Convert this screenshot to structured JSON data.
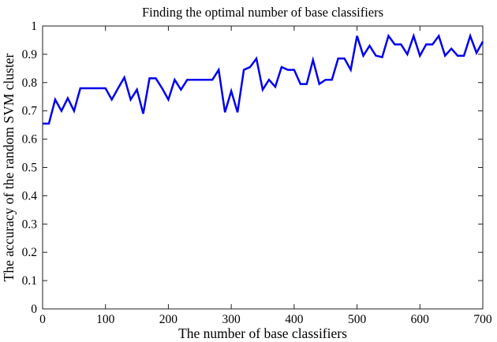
{
  "figure": {
    "background": "#ffffff"
  },
  "chart_data": {
    "type": "line",
    "title": "Finding the optimal number of base classifiers",
    "xlabel": "The number of base classifiers",
    "ylabel": "The accuracy of the random SVM cluster",
    "xlim": [
      0,
      700
    ],
    "ylim": [
      0,
      1
    ],
    "xticks": [
      0,
      100,
      200,
      300,
      400,
      500,
      600,
      700
    ],
    "xtick_labels": [
      "0",
      "100",
      "200",
      "300",
      "400",
      "500",
      "600",
      "700"
    ],
    "yticks": [
      0,
      0.1,
      0.2,
      0.3,
      0.4,
      0.5,
      0.6,
      0.7,
      0.8,
      0.9,
      1
    ],
    "ytick_labels": [
      "0",
      "0.1",
      "0.2",
      "0.3",
      "0.4",
      "0.5",
      "0.6",
      "0.7",
      "0.8",
      "0.9",
      "1"
    ],
    "grid": false,
    "legend": null,
    "line_color": "#0000EE",
    "line_width": 2.5,
    "axis_color": "#1f1f1f",
    "text_color": "#000000",
    "x": [
      0,
      10,
      20,
      30,
      40,
      50,
      60,
      70,
      80,
      90,
      100,
      110,
      120,
      130,
      140,
      150,
      160,
      170,
      180,
      190,
      200,
      210,
      220,
      230,
      240,
      250,
      260,
      270,
      280,
      290,
      300,
      310,
      320,
      330,
      340,
      350,
      360,
      370,
      380,
      390,
      400,
      410,
      420,
      430,
      440,
      450,
      460,
      470,
      480,
      490,
      500,
      510,
      520,
      530,
      540,
      550,
      560,
      570,
      580,
      590,
      600,
      610,
      620,
      630,
      640,
      650,
      660,
      670,
      680,
      690,
      700
    ],
    "y": [
      0.655,
      0.655,
      0.74,
      0.7,
      0.745,
      0.7,
      0.78,
      0.78,
      0.78,
      0.78,
      0.78,
      0.74,
      0.78,
      0.818,
      0.74,
      0.775,
      0.69,
      0.815,
      0.815,
      0.78,
      0.74,
      0.81,
      0.775,
      0.81,
      0.81,
      0.81,
      0.81,
      0.81,
      0.845,
      0.695,
      0.77,
      0.695,
      0.845,
      0.855,
      0.885,
      0.775,
      0.81,
      0.785,
      0.855,
      0.845,
      0.845,
      0.795,
      0.795,
      0.88,
      0.795,
      0.81,
      0.81,
      0.885,
      0.885,
      0.845,
      0.965,
      0.895,
      0.93,
      0.895,
      0.89,
      0.965,
      0.935,
      0.935,
      0.9,
      0.965,
      0.895,
      0.935,
      0.935,
      0.965,
      0.895,
      0.92,
      0.895,
      0.895,
      0.965,
      0.905,
      0.945
    ]
  }
}
